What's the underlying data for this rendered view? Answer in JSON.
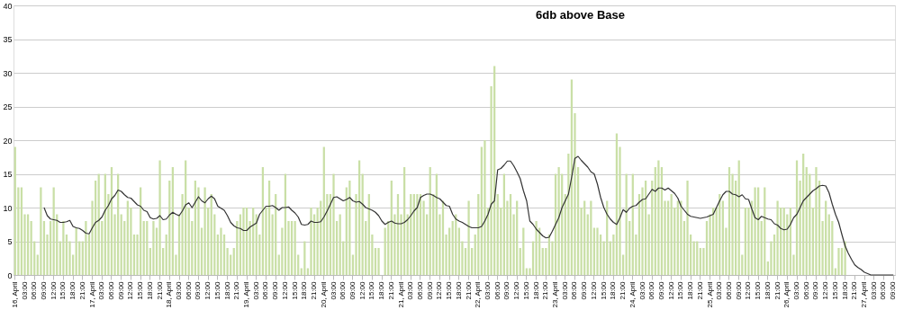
{
  "chart_data": {
    "type": "bar",
    "title": "6db above Base",
    "categories": [
      "16, April",
      null,
      null,
      "03:00",
      null,
      null,
      "06:00",
      null,
      null,
      "09:00",
      null,
      null,
      "12:00",
      null,
      null,
      "15:00",
      null,
      null,
      "18:00",
      null,
      null,
      "21:00",
      null,
      null,
      "17, April",
      null,
      null,
      "03:00",
      null,
      null,
      "06:00",
      null,
      null,
      "09:00",
      null,
      null,
      "12:00",
      null,
      null,
      "15:00",
      null,
      null,
      "18:00",
      null,
      null,
      "21:00",
      null,
      null,
      "18, April",
      null,
      null,
      "03:00",
      null,
      null,
      "06:00",
      null,
      null,
      "09:00",
      null,
      null,
      "12:00",
      null,
      null,
      "15:00",
      null,
      null,
      "18:00",
      null,
      null,
      "21:00",
      null,
      null,
      "19, April",
      null,
      null,
      "03:00",
      null,
      null,
      "06:00",
      null,
      null,
      "09:00",
      null,
      null,
      "12:00",
      null,
      null,
      "15:00",
      null,
      null,
      "18:00",
      null,
      null,
      "21:00",
      null,
      null,
      "20, April",
      null,
      null,
      "03:00",
      null,
      null,
      "06:00",
      null,
      null,
      "09:00",
      null,
      null,
      "12:00",
      null,
      null,
      "15:00",
      null,
      null,
      "18:00",
      null,
      null,
      "21:00",
      null,
      null,
      "21, April",
      null,
      null,
      "03:00",
      null,
      null,
      "06:00",
      null,
      null,
      "09:00",
      null,
      null,
      "12:00",
      null,
      null,
      "15:00",
      null,
      null,
      "18:00",
      null,
      null,
      "21:00",
      null,
      null,
      "22, April",
      null,
      null,
      "03:00",
      null,
      null,
      "06:00",
      null,
      null,
      "09:00",
      null,
      null,
      "12:00",
      null,
      null,
      "15:00",
      null,
      null,
      "18:00",
      null,
      null,
      "21:00",
      null,
      null,
      "23, April",
      null,
      null,
      "03:00",
      null,
      null,
      "06:00",
      null,
      null,
      "09:00",
      null,
      null,
      "12:00",
      null,
      null,
      "15:00",
      null,
      null,
      "18:00",
      null,
      null,
      "21:00",
      null,
      null,
      "24, April",
      null,
      null,
      "03:00",
      null,
      null,
      "06:00",
      null,
      null,
      "09:00",
      null,
      null,
      "12:00",
      null,
      null,
      "15:00",
      null,
      null,
      "18:00",
      null,
      null,
      "21:00",
      null,
      null,
      "25, April",
      null,
      null,
      "03:00",
      null,
      null,
      "06:00",
      null,
      null,
      "09:00",
      null,
      null,
      "12:00",
      null,
      null,
      "15:00",
      null,
      null,
      "18:00",
      null,
      null,
      "21:00",
      null,
      null,
      "26, April",
      null,
      null,
      "03:00",
      null,
      null,
      "06:00",
      null,
      null,
      "09:00",
      null,
      null,
      "12:00",
      null,
      null,
      "15:00",
      null,
      null,
      "18:00",
      null,
      null,
      "21:00",
      null,
      null,
      "27, April",
      null,
      null,
      "03:00",
      null,
      null,
      "06:00",
      null,
      null,
      "09:00"
    ],
    "series": [
      {
        "color": "#c9dfa6",
        "values": [
          19,
          13,
          13,
          9,
          9,
          8,
          5,
          3,
          13,
          8,
          6,
          8,
          13,
          9,
          5,
          8,
          6,
          5,
          3,
          7,
          5,
          5,
          8,
          6,
          11,
          14,
          15,
          8,
          15,
          12,
          16,
          9,
          15,
          9,
          8,
          11,
          10,
          6,
          6,
          13,
          8,
          8,
          4,
          8,
          7,
          17,
          4,
          6,
          14,
          16,
          3,
          9,
          12,
          17,
          10,
          8,
          14,
          13,
          7,
          13,
          10,
          12,
          9,
          6,
          7,
          6,
          4,
          3,
          4,
          8,
          9,
          10,
          10,
          8,
          10,
          9,
          6,
          16,
          10,
          14,
          9,
          12,
          3,
          7,
          15,
          8,
          8,
          8,
          3,
          1,
          5,
          1,
          10,
          9,
          10,
          11,
          19,
          12,
          12,
          15,
          8,
          9,
          5,
          13,
          14,
          3,
          12,
          17,
          15,
          8,
          12,
          6,
          4,
          4,
          0,
          7,
          8,
          14,
          9,
          12,
          9,
          16,
          9,
          12,
          12,
          12,
          12,
          11,
          9,
          16,
          12,
          15,
          9,
          11,
          6,
          7,
          8,
          9,
          7,
          5,
          4,
          11,
          4,
          6,
          12,
          19,
          20,
          10,
          28,
          31,
          12,
          10,
          15,
          11,
          12,
          9,
          11,
          4,
          7,
          1,
          1,
          5,
          8,
          7,
          4,
          4,
          6,
          5,
          15,
          16,
          15,
          12,
          18,
          29,
          24,
          16,
          10,
          11,
          9,
          11,
          7,
          7,
          6,
          5,
          11,
          5,
          6,
          21,
          19,
          3,
          15,
          8,
          15,
          6,
          12,
          13,
          14,
          9,
          14,
          16,
          17,
          16,
          11,
          11,
          12,
          10,
          11,
          11,
          8,
          14,
          6,
          5,
          5,
          4,
          4,
          8,
          9,
          10,
          10,
          12,
          11,
          7,
          16,
          15,
          14,
          17,
          3,
          10,
          10,
          11,
          13,
          13,
          8,
          13,
          2,
          5,
          6,
          11,
          10,
          10,
          9,
          10,
          3,
          17,
          14,
          18,
          16,
          15,
          10,
          16,
          14,
          8,
          11,
          9,
          8,
          1,
          4,
          4,
          5,
          null,
          null,
          null,
          null,
          null,
          null,
          null,
          null,
          null,
          null,
          null,
          null,
          null,
          null,
          null
        ]
      },
      {
        "type": "line",
        "color": "#333333",
        "values": [
          null,
          null,
          null,
          null,
          null,
          null,
          null,
          null,
          null,
          10.0,
          8.8,
          8.3,
          8.2,
          8.1,
          7.8,
          7.8,
          7.9,
          8.1,
          7.2,
          7.0,
          6.9,
          6.6,
          6.2,
          6.1,
          7.0,
          7.8,
          8.1,
          8.6,
          9.6,
          10.3,
          11.3,
          11.8,
          12.6,
          12.4,
          11.9,
          11.5,
          11.4,
          10.9,
          10.4,
          10.2,
          9.6,
          9.4,
          8.5,
          8.3,
          8.4,
          8.8,
          8.2,
          8.3,
          8.9,
          9.3,
          9.0,
          8.8,
          9.5,
          10.4,
          10.7,
          10.0,
          10.8,
          11.6,
          11.0,
          10.7,
          11.3,
          11.7,
          11.3,
          10.2,
          9.9,
          9.6,
          8.8,
          7.8,
          7.3,
          7.0,
          6.9,
          6.6,
          6.6,
          7.1,
          7.4,
          7.7,
          9.0,
          9.6,
          10.2,
          10.2,
          10.3,
          10.0,
          9.6,
          10.0,
          10.0,
          10.1,
          9.6,
          9.2,
          8.6,
          7.5,
          7.4,
          7.5,
          8.0,
          7.8,
          7.8,
          7.9,
          8.6,
          9.5,
          10.5,
          11.5,
          11.6,
          11.3,
          11.0,
          11.2,
          11.5,
          11.0,
          10.8,
          10.9,
          10.5,
          10.0,
          9.8,
          9.6,
          9.3,
          8.8,
          8.0,
          7.5,
          7.8,
          8.0,
          7.7,
          7.6,
          7.6,
          7.8,
          8.2,
          8.8,
          9.5,
          10.0,
          11.5,
          11.8,
          12.0,
          12.0,
          11.8,
          11.5,
          11.3,
          10.8,
          10.3,
          10.2,
          9.0,
          8.3,
          8.0,
          7.8,
          7.5,
          7.2,
          7.0,
          7.0,
          7.0,
          7.2,
          8.0,
          9.0,
          10.5,
          11.0,
          15.6,
          15.8,
          16.3,
          16.9,
          16.9,
          16.2,
          15.3,
          14.3,
          12.5,
          11.0,
          8.0,
          7.5,
          6.8,
          6.3,
          5.8,
          5.5,
          5.6,
          6.5,
          7.5,
          8.5,
          10.0,
          11.0,
          12.0,
          14.5,
          17.3,
          17.6,
          17.0,
          16.5,
          16.0,
          15.3,
          15.0,
          13.5,
          11.5,
          10.0,
          9.0,
          8.3,
          7.8,
          7.5,
          8.5,
          9.7,
          9.3,
          9.9,
          10.2,
          10.3,
          10.8,
          11.2,
          11.3,
          12.0,
          12.7,
          12.4,
          12.9,
          12.9,
          12.6,
          12.9,
          12.5,
          12.1,
          11.4,
          10.2,
          9.6,
          9.0,
          8.7,
          8.6,
          8.5,
          8.4,
          8.5,
          8.6,
          8.8,
          9.0,
          10.0,
          11.0,
          11.9,
          12.4,
          12.4,
          12.0,
          11.9,
          11.6,
          11.9,
          11.3,
          11.2,
          9.8,
          8.5,
          8.2,
          8.7,
          8.5,
          8.3,
          8.2,
          7.6,
          7.4,
          6.9,
          6.7,
          6.8,
          7.5,
          8.5,
          9.0,
          10.0,
          11.0,
          11.5,
          12.0,
          12.5,
          12.8,
          13.2,
          13.3,
          13.2,
          12.2,
          10.5,
          9.0,
          7.8,
          6.0,
          4.3,
          3.2,
          2.3,
          1.5,
          1.1,
          0.8,
          0.4,
          0.2,
          0,
          0,
          0,
          0,
          0,
          0,
          0,
          0
        ]
      }
    ],
    "ylim": [
      0,
      40
    ],
    "yticks": [
      0,
      5,
      10,
      15,
      20,
      25,
      30,
      35,
      40
    ],
    "grid": "y"
  }
}
